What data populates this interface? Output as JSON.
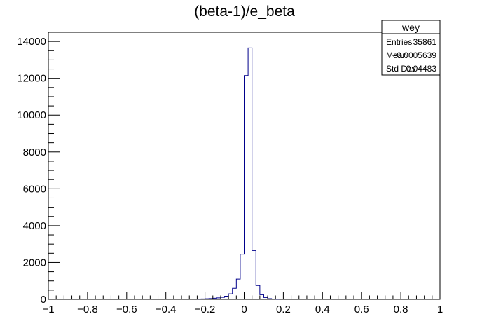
{
  "chart_data": {
    "type": "histogram",
    "title": "(beta-1)/e_beta",
    "xlabel": "",
    "ylabel": "",
    "xlim": [
      -1,
      1
    ],
    "ylim": [
      0,
      14500
    ],
    "bin_width": 0.02,
    "grid": false,
    "x_ticks": [
      -1,
      -0.8,
      -0.6,
      -0.4,
      -0.2,
      0,
      0.2,
      0.4,
      0.6,
      0.8,
      1
    ],
    "x_tick_labels": [
      "−1",
      "−0.8",
      "−0.6",
      "−0.4",
      "−0.2",
      "0",
      "0.2",
      "0.4",
      "0.6",
      "0.8",
      "1"
    ],
    "y_ticks": [
      0,
      2000,
      4000,
      6000,
      8000,
      10000,
      12000,
      14000
    ],
    "y_tick_labels": [
      "0",
      "2000",
      "4000",
      "6000",
      "8000",
      "10000",
      "12000",
      "14000"
    ],
    "line_color": "#00008b",
    "bins": [
      {
        "x_low": -0.24,
        "count": 15
      },
      {
        "x_low": -0.22,
        "count": 25
      },
      {
        "x_low": -0.2,
        "count": 35
      },
      {
        "x_low": -0.18,
        "count": 45
      },
      {
        "x_low": -0.16,
        "count": 60
      },
      {
        "x_low": -0.14,
        "count": 80
      },
      {
        "x_low": -0.12,
        "count": 110
      },
      {
        "x_low": -0.1,
        "count": 170
      },
      {
        "x_low": -0.08,
        "count": 300
      },
      {
        "x_low": -0.06,
        "count": 600
      },
      {
        "x_low": -0.04,
        "count": 1100
      },
      {
        "x_low": -0.02,
        "count": 2450
      },
      {
        "x_low": 0.0,
        "count": 12150
      },
      {
        "x_low": 0.02,
        "count": 13650
      },
      {
        "x_low": 0.04,
        "count": 2650
      },
      {
        "x_low": 0.06,
        "count": 750
      },
      {
        "x_low": 0.08,
        "count": 250
      },
      {
        "x_low": 0.1,
        "count": 100
      },
      {
        "x_low": 0.12,
        "count": 40
      },
      {
        "x_low": 0.14,
        "count": 20
      },
      {
        "x_low": 0.16,
        "count": 10
      }
    ],
    "stats_box": {
      "name": "wey",
      "rows": [
        {
          "label": "Entries",
          "value": "35861"
        },
        {
          "label": "Mean",
          "value": "−0.0005639"
        },
        {
          "label": "Std Dev",
          "value": "0.04483"
        }
      ]
    }
  }
}
